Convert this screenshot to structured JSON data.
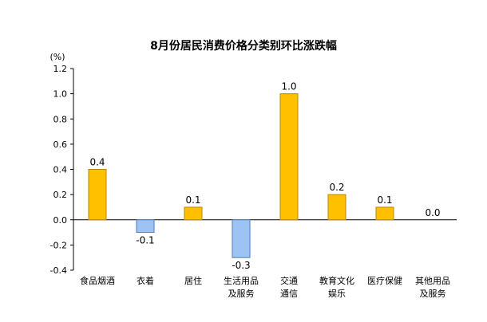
{
  "chart_data": {
    "type": "bar",
    "title": "8月份居民消费价格分类别环比涨跌幅",
    "ylabel": "(%)",
    "categories": [
      [
        "食品烟酒"
      ],
      [
        "衣着"
      ],
      [
        "居住"
      ],
      [
        "生活用品",
        "及服务"
      ],
      [
        "交通",
        "通信"
      ],
      [
        "教育文化",
        "娱乐"
      ],
      [
        "医疗保健"
      ],
      [
        "其他用品",
        "及服务"
      ]
    ],
    "values": [
      0.4,
      -0.1,
      0.1,
      -0.3,
      1.0,
      0.2,
      0.1,
      0.0
    ],
    "value_labels": [
      "0.4",
      "-0.1",
      "0.1",
      "-0.3",
      "1.0",
      "0.2",
      "0.1",
      "0.0"
    ],
    "ylim": [
      -0.4,
      1.2
    ],
    "yticks": [
      -0.4,
      -0.2,
      0.0,
      0.2,
      0.4,
      0.6,
      0.8,
      1.0,
      1.2
    ],
    "ytick_labels": [
      "-0.4",
      "-0.2",
      "0.0",
      "0.2",
      "0.4",
      "0.6",
      "0.8",
      "1.0",
      "1.2"
    ],
    "grid": false,
    "colors": {
      "positive_fill": "#FFC000",
      "positive_stroke": "#B8860B",
      "negative_fill": "#9DC3F5",
      "negative_stroke": "#4A7EBB",
      "axis": "#000000"
    }
  }
}
